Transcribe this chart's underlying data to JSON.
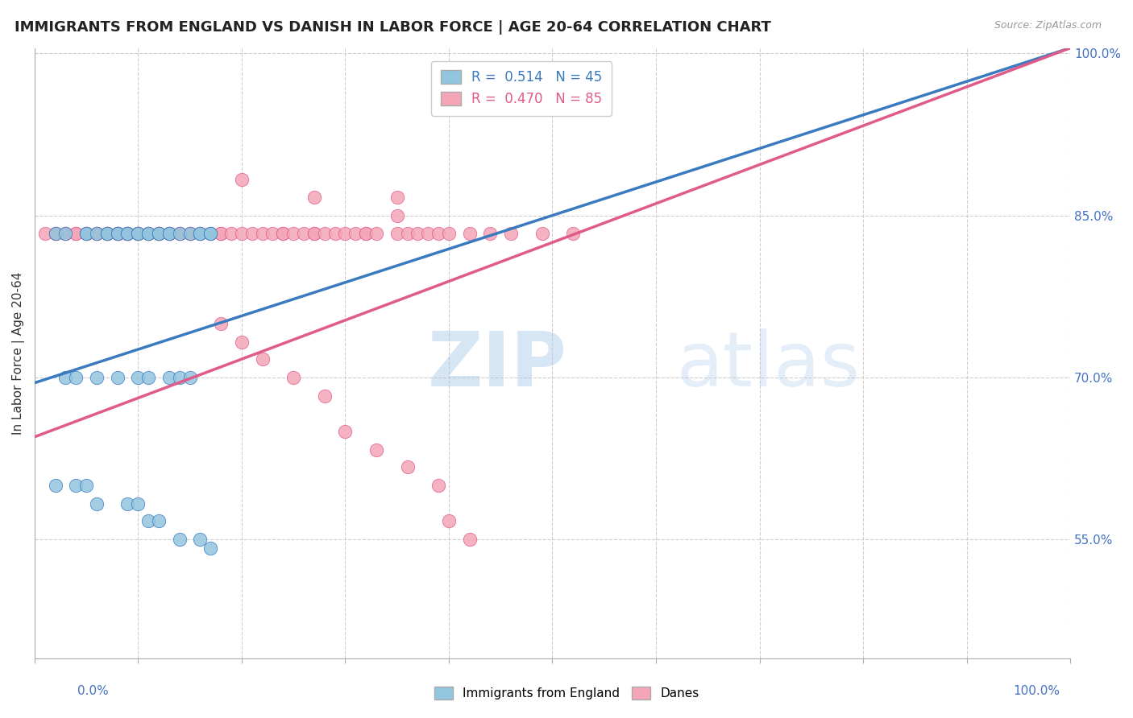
{
  "title": "IMMIGRANTS FROM ENGLAND VS DANISH IN LABOR FORCE | AGE 20-64 CORRELATION CHART",
  "source": "Source: ZipAtlas.com",
  "ylabel": "In Labor Force | Age 20-64",
  "legend_england": "Immigrants from England",
  "legend_danes": "Danes",
  "R_england": 0.514,
  "N_england": 45,
  "R_danes": 0.47,
  "N_danes": 85,
  "color_england": "#92c5de",
  "color_danes": "#f4a6b8",
  "trendline_england": "#3a7abf",
  "trendline_danes": "#e05a8a",
  "england_x": [
    0.02,
    0.03,
    0.05,
    0.05,
    0.06,
    0.07,
    0.07,
    0.08,
    0.08,
    0.09,
    0.09,
    0.1,
    0.1,
    0.11,
    0.11,
    0.12,
    0.12,
    0.13,
    0.13,
    0.14,
    0.15,
    0.16,
    0.16,
    0.17,
    0.17,
    0.03,
    0.04,
    0.06,
    0.08,
    0.1,
    0.11,
    0.13,
    0.14,
    0.15,
    0.02,
    0.04,
    0.05,
    0.06,
    0.09,
    0.1,
    0.11,
    0.12,
    0.14,
    0.16,
    0.17
  ],
  "england_y": [
    0.833,
    0.833,
    0.833,
    0.833,
    0.833,
    0.833,
    0.833,
    0.833,
    0.833,
    0.833,
    0.833,
    0.833,
    0.833,
    0.833,
    0.833,
    0.833,
    0.833,
    0.833,
    0.833,
    0.833,
    0.833,
    0.833,
    0.833,
    0.833,
    0.833,
    0.7,
    0.7,
    0.7,
    0.7,
    0.7,
    0.7,
    0.7,
    0.7,
    0.7,
    0.6,
    0.6,
    0.6,
    0.583,
    0.583,
    0.583,
    0.567,
    0.567,
    0.55,
    0.55,
    0.542
  ],
  "danes_x": [
    0.01,
    0.02,
    0.02,
    0.03,
    0.03,
    0.04,
    0.04,
    0.05,
    0.05,
    0.06,
    0.06,
    0.06,
    0.07,
    0.07,
    0.07,
    0.08,
    0.08,
    0.08,
    0.08,
    0.09,
    0.09,
    0.09,
    0.09,
    0.1,
    0.1,
    0.1,
    0.11,
    0.11,
    0.12,
    0.12,
    0.12,
    0.13,
    0.13,
    0.14,
    0.14,
    0.15,
    0.15,
    0.16,
    0.17,
    0.18,
    0.18,
    0.19,
    0.2,
    0.21,
    0.22,
    0.23,
    0.24,
    0.24,
    0.25,
    0.26,
    0.27,
    0.27,
    0.28,
    0.29,
    0.3,
    0.31,
    0.32,
    0.32,
    0.33,
    0.35,
    0.36,
    0.37,
    0.38,
    0.39,
    0.4,
    0.42,
    0.44,
    0.46,
    0.49,
    0.52,
    0.18,
    0.2,
    0.22,
    0.25,
    0.28,
    0.3,
    0.33,
    0.36,
    0.39,
    0.4,
    0.42,
    0.35,
    0.2,
    0.27,
    0.35
  ],
  "danes_y": [
    0.833,
    0.833,
    0.833,
    0.833,
    0.833,
    0.833,
    0.833,
    0.833,
    0.833,
    0.833,
    0.833,
    0.833,
    0.833,
    0.833,
    0.833,
    0.833,
    0.833,
    0.833,
    0.833,
    0.833,
    0.833,
    0.833,
    0.833,
    0.833,
    0.833,
    0.833,
    0.833,
    0.833,
    0.833,
    0.833,
    0.833,
    0.833,
    0.833,
    0.833,
    0.833,
    0.833,
    0.833,
    0.833,
    0.833,
    0.833,
    0.833,
    0.833,
    0.833,
    0.833,
    0.833,
    0.833,
    0.833,
    0.833,
    0.833,
    0.833,
    0.833,
    0.833,
    0.833,
    0.833,
    0.833,
    0.833,
    0.833,
    0.833,
    0.833,
    0.833,
    0.833,
    0.833,
    0.833,
    0.833,
    0.833,
    0.833,
    0.833,
    0.833,
    0.833,
    0.833,
    0.75,
    0.733,
    0.717,
    0.7,
    0.683,
    0.65,
    0.633,
    0.617,
    0.6,
    0.567,
    0.55,
    0.867,
    0.883,
    0.867,
    0.85
  ],
  "background_color": "#ffffff",
  "grid_color": "#c8c8c8",
  "axis_label_color": "#4472c4",
  "right_axis_color": "#4472c4",
  "ylim_min": 0.44,
  "ylim_max": 1.005,
  "xlim_min": 0.0,
  "xlim_max": 1.0,
  "yticks": [
    0.55,
    0.7,
    0.85,
    1.0
  ],
  "ytick_labels": [
    "55.0%",
    "70.0%",
    "85.0%",
    "100.0%"
  ],
  "trendline_eng_x0": 0.0,
  "trendline_eng_x1": 1.0,
  "trendline_eng_y0": 0.695,
  "trendline_eng_y1": 1.005,
  "trendline_dan_x0": 0.0,
  "trendline_dan_x1": 1.0,
  "trendline_dan_y0": 0.645,
  "trendline_dan_y1": 1.005
}
